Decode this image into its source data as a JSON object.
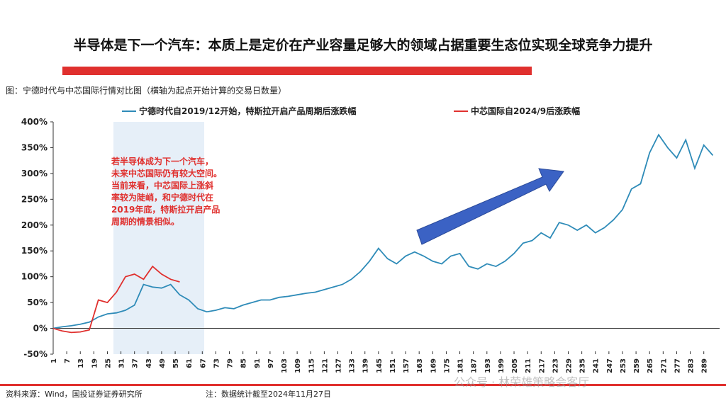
{
  "chart_data": {
    "type": "line",
    "title": "半导体是下一个汽车：本质上是定价在产业容量足够大的领域占据重要生态位实现全球竞争力提升",
    "subtitle": "图：宁德时代与中芯国际行情对比图（横轴为起点开始计算的交易日数量）",
    "annotation": [
      "若半导体成为下一个汽车，",
      "未来中芯国际仍有较大空间。",
      "当前来看，中芯国际上涨斜",
      "率较为陡峭，和宁德时代在",
      "2019年底，特斯拉开启产品",
      "周期的情景相似。"
    ],
    "source": "资料来源：Wind，国投证券证券研究所",
    "note": "注：数据统计截至2024年11月27日",
    "watermark": "公众号 · 林荣雄策略会客厅",
    "x": [
      1,
      5,
      9,
      13,
      17,
      21,
      25,
      29,
      33,
      37,
      41,
      45,
      49,
      53,
      57,
      61,
      65,
      69,
      73,
      77,
      81,
      85,
      89,
      93,
      97,
      101,
      105,
      109,
      113,
      117,
      121,
      125,
      129,
      133,
      137,
      141,
      145,
      149,
      153,
      157,
      161,
      165,
      169,
      173,
      177,
      181,
      185,
      189,
      193,
      197,
      201,
      205,
      209,
      213,
      217,
      221,
      225,
      229,
      233,
      237,
      241,
      245,
      249,
      253,
      257,
      261,
      265,
      269,
      273,
      277,
      281,
      285,
      289,
      293
    ],
    "series": [
      {
        "name": "宁德时代自2019/12开始，特斯拉开启产品周期后涨跌幅",
        "color": "#2e8bb8",
        "values": [
          0,
          3,
          5,
          8,
          12,
          22,
          28,
          30,
          35,
          45,
          85,
          80,
          78,
          85,
          65,
          55,
          38,
          32,
          35,
          40,
          38,
          45,
          50,
          55,
          55,
          60,
          62,
          65,
          68,
          70,
          75,
          80,
          85,
          95,
          110,
          130,
          155,
          135,
          125,
          140,
          148,
          140,
          130,
          125,
          140,
          145,
          120,
          115,
          125,
          120,
          130,
          145,
          165,
          170,
          185,
          175,
          205,
          200,
          190,
          200,
          185,
          195,
          210,
          230,
          270,
          280,
          340,
          375,
          350,
          330,
          365,
          310,
          355,
          335
        ]
      },
      {
        "name": "中芯国际自2024/9后涨跌幅",
        "color": "#e0302e",
        "values": [
          0,
          -5,
          -8,
          -7,
          -3,
          55,
          50,
          70,
          100,
          105,
          95,
          120,
          105,
          95,
          90,
          null,
          null,
          null,
          null,
          null,
          null,
          null,
          null,
          null,
          null,
          null,
          null,
          null,
          null,
          null,
          null,
          null,
          null,
          null,
          null,
          null,
          null,
          null,
          null,
          null,
          null,
          null,
          null,
          null,
          null,
          null,
          null,
          null,
          null,
          null,
          null,
          null,
          null,
          null,
          null,
          null,
          null,
          null,
          null,
          null,
          null,
          null,
          null,
          null,
          null,
          null,
          null,
          null,
          null,
          null,
          null,
          null,
          null,
          null
        ]
      }
    ],
    "xlim": [
      1,
      296
    ],
    "xticks": [
      1,
      7,
      13,
      19,
      25,
      31,
      37,
      43,
      49,
      55,
      61,
      67,
      73,
      79,
      85,
      91,
      97,
      103,
      109,
      115,
      121,
      127,
      133,
      139,
      145,
      151,
      157,
      163,
      169,
      175,
      181,
      187,
      193,
      199,
      205,
      211,
      217,
      223,
      229,
      235,
      241,
      247,
      253,
      259,
      265,
      271,
      277,
      283,
      289
    ],
    "ylim": [
      -50,
      400
    ],
    "yticks": [
      {
        "value": -50,
        "label": "-50%"
      },
      {
        "value": 0,
        "label": "0%"
      },
      {
        "value": 50,
        "label": "50%"
      },
      {
        "value": 100,
        "label": "100%"
      },
      {
        "value": 150,
        "label": "150%"
      },
      {
        "value": 200,
        "label": "200%"
      },
      {
        "value": 250,
        "label": "250%"
      },
      {
        "value": 300,
        "label": "300%"
      },
      {
        "value": 350,
        "label": "350%"
      },
      {
        "value": 400,
        "label": "400%"
      }
    ]
  }
}
